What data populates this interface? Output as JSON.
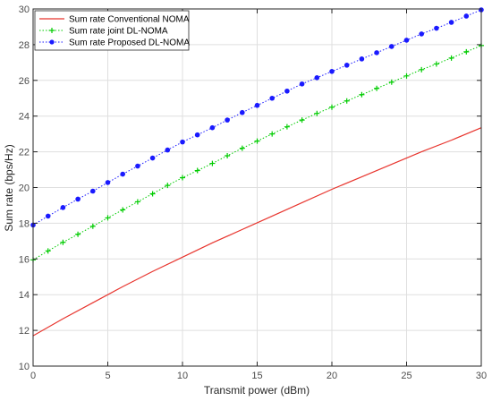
{
  "chart_data": {
    "type": "line",
    "title": "",
    "xlabel": "Transmit power (dBm)",
    "ylabel": "Sum rate (bps/Hz)",
    "xlim": [
      0,
      30
    ],
    "ylim": [
      10,
      30
    ],
    "xticks": [
      0,
      5,
      10,
      15,
      20,
      25,
      30
    ],
    "yticks": [
      10,
      12,
      14,
      16,
      18,
      20,
      22,
      24,
      26,
      28,
      30
    ],
    "grid": true,
    "legend_position": "top-left",
    "series": [
      {
        "name": "Sum rate Conventional NOMA",
        "color": "#e8352e",
        "line_style": "solid",
        "marker": "none",
        "x": [
          0,
          2,
          4,
          6,
          8,
          10,
          12,
          14,
          16,
          18,
          20,
          22,
          24,
          26,
          28,
          30
        ],
        "y": [
          11.7,
          12.65,
          13.55,
          14.45,
          15.3,
          16.1,
          16.9,
          17.65,
          18.4,
          19.15,
          19.9,
          20.6,
          21.3,
          22.0,
          22.65,
          23.35
        ]
      },
      {
        "name": "Sum rate joint DL-NOMA",
        "color": "#00cc00",
        "line_style": "dotted",
        "marker": "plus",
        "x": [
          0,
          1,
          2,
          3,
          4,
          5,
          6,
          7,
          8,
          9,
          10,
          11,
          12,
          13,
          14,
          15,
          16,
          17,
          18,
          19,
          20,
          21,
          22,
          23,
          24,
          25,
          26,
          27,
          28,
          29,
          30
        ],
        "y": [
          15.95,
          16.45,
          16.93,
          17.38,
          17.83,
          18.3,
          18.75,
          19.2,
          19.65,
          20.12,
          20.55,
          20.95,
          21.35,
          21.78,
          22.2,
          22.6,
          23.0,
          23.4,
          23.78,
          24.15,
          24.5,
          24.85,
          25.2,
          25.55,
          25.9,
          26.25,
          26.6,
          26.92,
          27.25,
          27.6,
          27.95
        ]
      },
      {
        "name": "Sum rate Proposed DL-NOMA",
        "color": "#1a1aff",
        "line_style": "dotted",
        "marker": "circle",
        "x": [
          0,
          1,
          2,
          3,
          4,
          5,
          6,
          7,
          8,
          9,
          10,
          11,
          12,
          13,
          14,
          15,
          16,
          17,
          18,
          19,
          20,
          21,
          22,
          23,
          24,
          25,
          26,
          27,
          28,
          29,
          30
        ],
        "y": [
          17.9,
          18.4,
          18.88,
          19.35,
          19.8,
          20.28,
          20.75,
          21.2,
          21.65,
          22.1,
          22.55,
          22.95,
          23.35,
          23.78,
          24.2,
          24.6,
          25.0,
          25.4,
          25.8,
          26.15,
          26.5,
          26.85,
          27.2,
          27.55,
          27.9,
          28.25,
          28.6,
          28.92,
          29.25,
          29.6,
          29.95
        ]
      }
    ]
  }
}
